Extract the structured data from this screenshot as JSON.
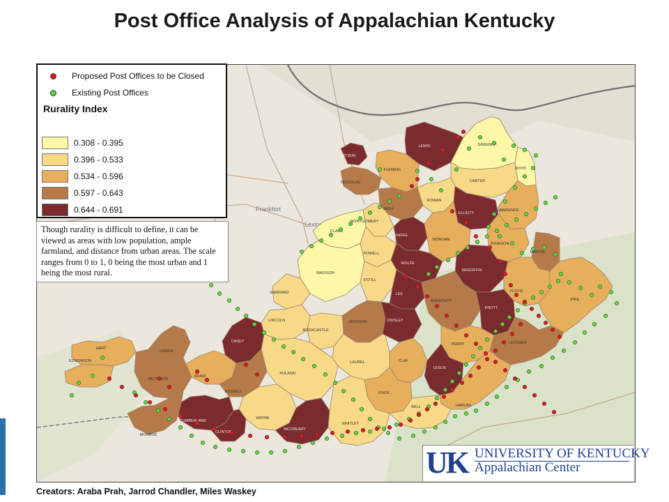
{
  "title": "Post Office Analysis of Appalachian Kentucky",
  "legend": {
    "closed_label": "Proposed Post Offices to be Closed",
    "existing_label": "Existing Post Offices",
    "index_title": "Rurality Index",
    "classes": [
      {
        "range": "0.308 - 0.395",
        "color": "#fdf7a8"
      },
      {
        "range": "0.396 - 0.533",
        "color": "#f8d987"
      },
      {
        "range": "0.534 - 0.596",
        "color": "#e7ae5b"
      },
      {
        "range": "0.597 - 0.643",
        "color": "#b67a48"
      },
      {
        "range": "0.644 - 0.691",
        "color": "#7b2a2d"
      }
    ],
    "closed_color": "#e01a1a",
    "existing_color": "#5cd63a"
  },
  "note": "Though rurality is difficult to define, it can be viewed as areas with low population, ample farmland, and distance from urban areas. The scale ranges from 0 to 1, 0 being the most urban and 1 being the most rural.",
  "city_labels": {
    "frankfort": "Frankfort",
    "lexington": "Lexington"
  },
  "counties": [
    {
      "name": "LEWIS",
      "cls": 4
    },
    {
      "name": "GREENUP",
      "cls": 0
    },
    {
      "name": "BOYD",
      "cls": 0
    },
    {
      "name": "ROBERTSON",
      "cls": 4
    },
    {
      "name": "FLEMING",
      "cls": 2
    },
    {
      "name": "CARTER",
      "cls": 1
    },
    {
      "name": "NICHOLAS",
      "cls": 3
    },
    {
      "name": "ROWAN",
      "cls": 1
    },
    {
      "name": "BATH",
      "cls": 3
    },
    {
      "name": "ELLIOTT",
      "cls": 4
    },
    {
      "name": "LAWRENCE",
      "cls": 2
    },
    {
      "name": "MONTGOMERY",
      "cls": 1
    },
    {
      "name": "CLARK",
      "cls": 0
    },
    {
      "name": "MENIFEE",
      "cls": 4
    },
    {
      "name": "MORGAN",
      "cls": 2
    },
    {
      "name": "JOHNSON",
      "cls": 2
    },
    {
      "name": "MARTIN",
      "cls": 3
    },
    {
      "name": "POWELL",
      "cls": 1
    },
    {
      "name": "MADISON",
      "cls": 0
    },
    {
      "name": "WOLFE",
      "cls": 4
    },
    {
      "name": "MAGOFFIN",
      "cls": 4
    },
    {
      "name": "ESTILL",
      "cls": 1
    },
    {
      "name": "GARRARD",
      "cls": 1
    },
    {
      "name": "FLOYD",
      "cls": 2
    },
    {
      "name": "PIKE",
      "cls": 2
    },
    {
      "name": "LEE",
      "cls": 4
    },
    {
      "name": "BREATHITT",
      "cls": 3
    },
    {
      "name": "LINCOLN",
      "cls": 1
    },
    {
      "name": "JACKSON",
      "cls": 3
    },
    {
      "name": "OWSLEY",
      "cls": 4
    },
    {
      "name": "KNOTT",
      "cls": 4
    },
    {
      "name": "ROCKCASTLE",
      "cls": 1
    },
    {
      "name": "CASEY",
      "cls": 4
    },
    {
      "name": "PERRY",
      "cls": 2
    },
    {
      "name": "LETCHER",
      "cls": 3
    },
    {
      "name": "HART",
      "cls": 2
    },
    {
      "name": "GREEN",
      "cls": 3
    },
    {
      "name": "EDMONSON",
      "cls": 2
    },
    {
      "name": "CLAY",
      "cls": 2
    },
    {
      "name": "LESLIE",
      "cls": 4
    },
    {
      "name": "LAUREL",
      "cls": 1
    },
    {
      "name": "PULASKI",
      "cls": 1
    },
    {
      "name": "ADAIR",
      "cls": 2
    },
    {
      "name": "RUSSELL",
      "cls": 3
    },
    {
      "name": "METCALFE",
      "cls": 3
    },
    {
      "name": "KNOX",
      "cls": 2
    },
    {
      "name": "HARLAN",
      "cls": 2
    },
    {
      "name": "CUMBERLAND",
      "cls": 4
    },
    {
      "name": "WAYNE",
      "cls": 1
    },
    {
      "name": "BELL",
      "cls": 1
    },
    {
      "name": "CLINTON",
      "cls": 4
    },
    {
      "name": "MCCREARY",
      "cls": 4
    },
    {
      "name": "WHITLEY",
      "cls": 1
    },
    {
      "name": "MONROE",
      "cls": 3
    }
  ],
  "logo": {
    "mark": "UK",
    "line1": "UNIVERSITY OF KENTUCKY",
    "line2": "Appalachian Center"
  },
  "credits": "Creators: Araba Prah, Jarrod Chandler, Miles Waskey"
}
